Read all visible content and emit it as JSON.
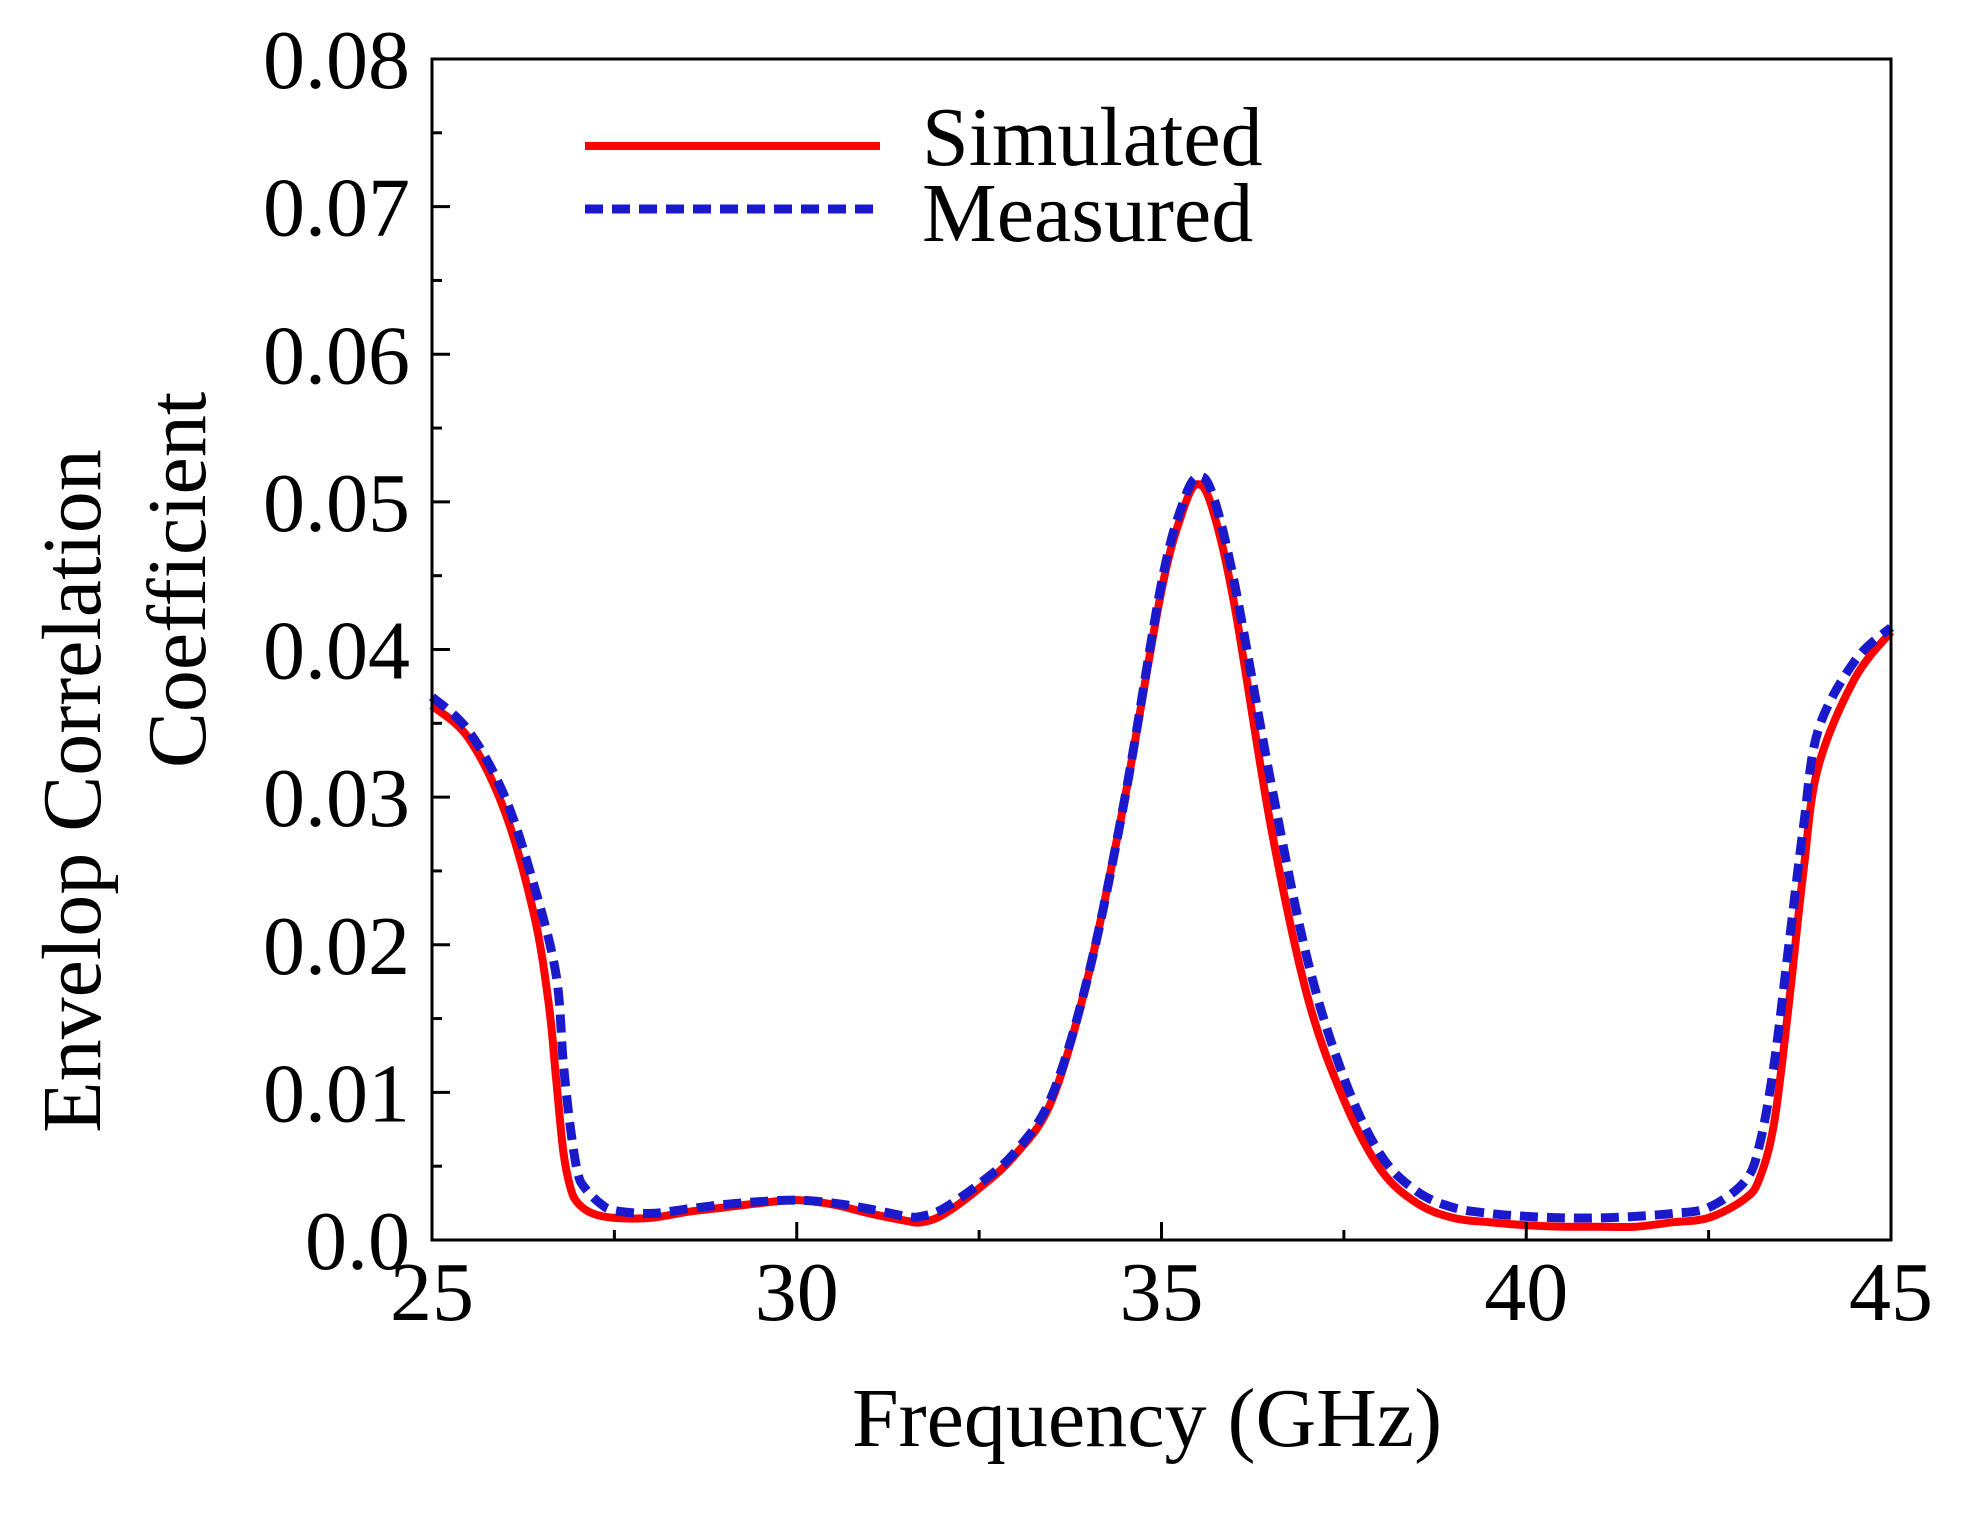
{
  "chart_data": {
    "type": "line",
    "title": "",
    "xlabel": "Frequency (GHz)",
    "ylabel_lines": [
      "Envelop Correlation",
      "Coefficient"
    ],
    "xlim": [
      25,
      45
    ],
    "ylim": [
      0,
      0.08
    ],
    "x_major_ticks": [
      25,
      30,
      35,
      40,
      45
    ],
    "x_tick_labels": [
      "25",
      "30",
      "35",
      "40",
      "45"
    ],
    "x_minor_ticks": [
      27.5,
      32.5,
      37.5,
      42.5
    ],
    "y_major_ticks": [
      0,
      0.01,
      0.02,
      0.03,
      0.04,
      0.05,
      0.06,
      0.07,
      0.08
    ],
    "y_tick_labels": [
      "0.0",
      "0.01",
      "0.02",
      "0.03",
      "0.04",
      "0.05",
      "0.06",
      "0.07",
      "0.08"
    ],
    "y_minor_ticks": [
      0.005,
      0.015,
      0.025,
      0.035,
      0.045,
      0.055,
      0.065,
      0.075
    ],
    "grid": false,
    "legend_position": "top-left",
    "series": [
      {
        "name": "Simulated",
        "color": "#ff0000",
        "style": "solid",
        "x": [
          25,
          25.5,
          26,
          26.4,
          26.6,
          26.7,
          26.8,
          26.9,
          27,
          27.2,
          27.5,
          28,
          28.5,
          29,
          29.5,
          30,
          30.5,
          31,
          31.5,
          31.7,
          32,
          32.5,
          33,
          33.5,
          34,
          34.5,
          35,
          35.3,
          35.5,
          35.7,
          36,
          36.5,
          37,
          37.5,
          38,
          38.5,
          39,
          39.5,
          40,
          40.5,
          41,
          41.5,
          42,
          42.5,
          43,
          43.2,
          43.4,
          43.6,
          43.8,
          44,
          44.5,
          45
        ],
        "y": [
          0.0362,
          0.034,
          0.029,
          0.022,
          0.016,
          0.011,
          0.006,
          0.0035,
          0.0025,
          0.0018,
          0.0015,
          0.0015,
          0.0019,
          0.0022,
          0.0025,
          0.0027,
          0.0024,
          0.0018,
          0.0013,
          0.0012,
          0.0017,
          0.0035,
          0.0058,
          0.0095,
          0.018,
          0.03,
          0.044,
          0.0495,
          0.0512,
          0.0495,
          0.043,
          0.028,
          0.0165,
          0.0095,
          0.0048,
          0.0025,
          0.0015,
          0.0012,
          0.001,
          0.0009,
          0.0009,
          0.0009,
          0.0012,
          0.0015,
          0.0028,
          0.0042,
          0.008,
          0.016,
          0.025,
          0.032,
          0.038,
          0.0412
        ]
      },
      {
        "name": "Measured",
        "color": "#1a1acc",
        "style": "dashed",
        "x": [
          25,
          25.5,
          26,
          26.4,
          26.7,
          26.8,
          26.9,
          27,
          27.1,
          27.3,
          27.5,
          28,
          28.5,
          29,
          29.5,
          30,
          30.5,
          31,
          31.5,
          31.7,
          32,
          32.5,
          33,
          33.5,
          34,
          34.5,
          35,
          35.3,
          35.5,
          35.7,
          36,
          36.5,
          37,
          37.5,
          38,
          38.5,
          39,
          39.5,
          40,
          40.5,
          41,
          41.5,
          42,
          42.5,
          43,
          43.2,
          43.4,
          43.6,
          43.8,
          44,
          44.5,
          45
        ],
        "y": [
          0.0368,
          0.0345,
          0.03,
          0.024,
          0.018,
          0.012,
          0.0075,
          0.0045,
          0.0035,
          0.0025,
          0.002,
          0.0018,
          0.0021,
          0.0024,
          0.0026,
          0.0027,
          0.0025,
          0.0021,
          0.0016,
          0.0016,
          0.0021,
          0.0038,
          0.006,
          0.0098,
          0.018,
          0.03,
          0.0445,
          0.05,
          0.0517,
          0.0505,
          0.0445,
          0.031,
          0.019,
          0.011,
          0.0058,
          0.0033,
          0.0022,
          0.0018,
          0.0016,
          0.0015,
          0.0015,
          0.0016,
          0.0018,
          0.0022,
          0.004,
          0.0065,
          0.012,
          0.02,
          0.028,
          0.0345,
          0.0392,
          0.0415
        ]
      }
    ]
  }
}
